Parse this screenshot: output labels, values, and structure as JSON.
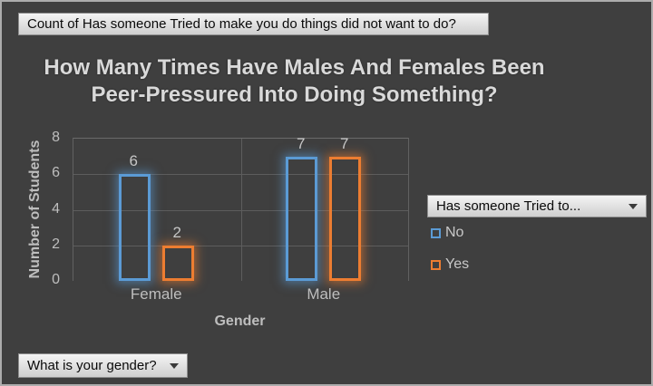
{
  "window": {
    "background": "#3F3F3F",
    "border_color": "#ACACAC"
  },
  "filters": {
    "value_field_button": "Count of Has someone Tried to make you do things did not want to do?",
    "legend_field_button": "Has someone Tried to...",
    "axis_field_button": "What is your gender?"
  },
  "chart_data": {
    "type": "bar",
    "title_line1": "How Many Times Have Males And Females Been",
    "title_line2": "Peer-Pressured Into Doing Something?",
    "categories": [
      "Female",
      "Male"
    ],
    "series": [
      {
        "name": "No",
        "color": "#5B9BD5",
        "glow": "rgba(91,155,213,0.55)",
        "values": [
          6,
          7
        ]
      },
      {
        "name": "Yes",
        "color": "#ED7D31",
        "glow": "rgba(237,125,49,0.55)",
        "values": [
          2,
          7
        ]
      }
    ],
    "data_labels": [
      [
        6,
        7
      ],
      [
        2,
        7
      ]
    ],
    "xlabel": "Gender",
    "ylabel": "Number of Students",
    "ylim": [
      0,
      8
    ],
    "yticks": [
      0,
      2,
      4,
      6,
      8
    ],
    "grid": true,
    "legend_position": "right",
    "bar_style": "outlined-with-glow"
  },
  "colors": {
    "series_no": "#5B9BD5",
    "series_yes": "#ED7D31",
    "text": "#BEBEBE",
    "title_text": "#D9D9D9",
    "gridline": "#5D5D5D"
  }
}
